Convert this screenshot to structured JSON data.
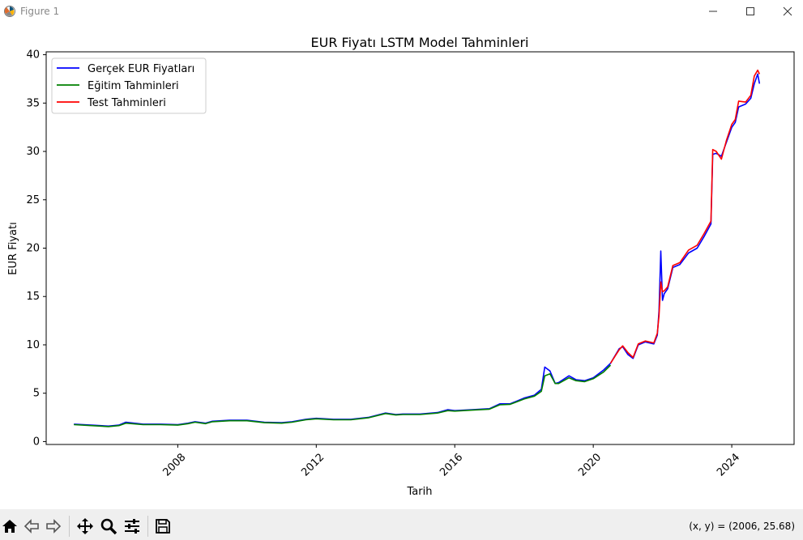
{
  "window": {
    "title": "Figure 1",
    "minimize_icon": "minimize-icon",
    "maximize_icon": "maximize-icon",
    "close_icon": "close-icon"
  },
  "toolbar": {
    "buttons": [
      "home-icon",
      "back-icon",
      "forward-icon",
      "pan-icon",
      "zoom-icon",
      "configure-subplots-icon",
      "save-icon"
    ],
    "coords_text": "(x, y) = (2006, 25.68)"
  },
  "chart_data": {
    "type": "line",
    "title": "EUR Fiyatı LSTM Model Tahminleri",
    "xlabel": "Tarih",
    "ylabel": "EUR Fiyatı",
    "xlim": [
      2004.2,
      2025.8
    ],
    "ylim": [
      -0.3,
      40.3
    ],
    "xticks": [
      2008,
      2012,
      2016,
      2020,
      2024
    ],
    "xtick_labels": [
      "2008",
      "2012",
      "2016",
      "2020",
      "2024"
    ],
    "yticks": [
      0,
      5,
      10,
      15,
      20,
      25,
      30,
      35,
      40
    ],
    "ytick_labels": [
      "0",
      "5",
      "10",
      "15",
      "20",
      "25",
      "30",
      "35",
      "40"
    ],
    "grid": false,
    "legend": "top-left",
    "series": [
      {
        "name": "Gerçek EUR Fiyatları",
        "color": "#0000ff",
        "x": [
          2005.0,
          2005.5,
          2006.0,
          2006.3,
          2006.5,
          2007.0,
          2007.5,
          2008.0,
          2008.3,
          2008.5,
          2008.8,
          2009.0,
          2009.5,
          2010.0,
          2010.5,
          2011.0,
          2011.3,
          2011.7,
          2012.0,
          2012.5,
          2013.0,
          2013.5,
          2014.0,
          2014.3,
          2014.5,
          2015.0,
          2015.5,
          2015.8,
          2016.0,
          2016.5,
          2017.0,
          2017.3,
          2017.6,
          2018.0,
          2018.3,
          2018.5,
          2018.6,
          2018.75,
          2018.9,
          2019.0,
          2019.3,
          2019.5,
          2019.75,
          2020.0,
          2020.3,
          2020.5,
          2020.75,
          2020.85,
          2021.0,
          2021.15,
          2021.3,
          2021.5,
          2021.75,
          2021.85,
          2021.9,
          2021.95,
          2022.0,
          2022.05,
          2022.15,
          2022.3,
          2022.5,
          2022.75,
          2023.0,
          2023.2,
          2023.4,
          2023.45,
          2023.55,
          2023.7,
          2023.85,
          2024.0,
          2024.1,
          2024.2,
          2024.4,
          2024.55,
          2024.65,
          2024.75,
          2024.8
        ],
        "y": [
          1.8,
          1.7,
          1.6,
          1.7,
          2.0,
          1.8,
          1.8,
          1.75,
          1.9,
          2.05,
          1.9,
          2.1,
          2.2,
          2.2,
          2.0,
          1.95,
          2.05,
          2.3,
          2.4,
          2.3,
          2.3,
          2.5,
          2.95,
          2.8,
          2.85,
          2.85,
          3.0,
          3.3,
          3.2,
          3.3,
          3.4,
          3.9,
          3.9,
          4.5,
          4.8,
          5.4,
          7.7,
          7.3,
          6.0,
          6.1,
          6.8,
          6.4,
          6.3,
          6.6,
          7.4,
          8.1,
          9.6,
          9.8,
          9.0,
          8.6,
          10.0,
          10.3,
          10.1,
          11.0,
          13.5,
          19.7,
          14.6,
          15.3,
          15.8,
          18.0,
          18.3,
          19.5,
          20.0,
          21.2,
          22.5,
          29.7,
          29.8,
          29.5,
          31.0,
          32.5,
          33.0,
          34.6,
          34.9,
          35.5,
          37.0,
          38.0,
          37.0
        ]
      },
      {
        "name": "Eğitim Tahminleri",
        "color": "#008000",
        "x": [
          2005.0,
          2005.5,
          2006.0,
          2006.3,
          2006.5,
          2007.0,
          2007.5,
          2008.0,
          2008.3,
          2008.5,
          2008.8,
          2009.0,
          2009.5,
          2010.0,
          2010.5,
          2011.0,
          2011.3,
          2011.7,
          2012.0,
          2012.5,
          2013.0,
          2013.5,
          2014.0,
          2014.3,
          2014.5,
          2015.0,
          2015.5,
          2015.8,
          2016.0,
          2016.5,
          2017.0,
          2017.3,
          2017.6,
          2018.0,
          2018.3,
          2018.5,
          2018.6,
          2018.75,
          2018.9,
          2019.0,
          2019.3,
          2019.5,
          2019.75,
          2020.0,
          2020.3,
          2020.5
        ],
        "y": [
          1.75,
          1.65,
          1.55,
          1.65,
          1.9,
          1.75,
          1.75,
          1.7,
          1.85,
          2.0,
          1.85,
          2.05,
          2.15,
          2.15,
          1.95,
          1.9,
          2.0,
          2.25,
          2.35,
          2.25,
          2.25,
          2.45,
          2.9,
          2.75,
          2.8,
          2.8,
          2.95,
          3.2,
          3.15,
          3.25,
          3.35,
          3.8,
          3.85,
          4.4,
          4.7,
          5.2,
          6.8,
          7.0,
          6.0,
          6.0,
          6.6,
          6.3,
          6.2,
          6.5,
          7.2,
          7.9
        ]
      },
      {
        "name": "Test Tahminleri",
        "color": "#ff0000",
        "x": [
          2020.5,
          2020.75,
          2020.85,
          2021.0,
          2021.15,
          2021.3,
          2021.5,
          2021.75,
          2021.85,
          2021.9,
          2021.95,
          2022.0,
          2022.05,
          2022.15,
          2022.3,
          2022.5,
          2022.75,
          2023.0,
          2023.2,
          2023.4,
          2023.45,
          2023.55,
          2023.7,
          2023.85,
          2024.0,
          2024.1,
          2024.2,
          2024.4,
          2024.55,
          2024.65,
          2024.75,
          2024.8
        ],
        "y": [
          8.1,
          9.5,
          9.9,
          9.2,
          8.7,
          10.1,
          10.4,
          10.2,
          11.2,
          13.0,
          16.5,
          15.5,
          15.6,
          16.0,
          18.2,
          18.5,
          19.8,
          20.3,
          21.5,
          22.8,
          30.2,
          30.0,
          29.2,
          31.2,
          32.8,
          33.3,
          35.2,
          35.1,
          35.8,
          37.8,
          38.4,
          38.0
        ]
      }
    ]
  }
}
